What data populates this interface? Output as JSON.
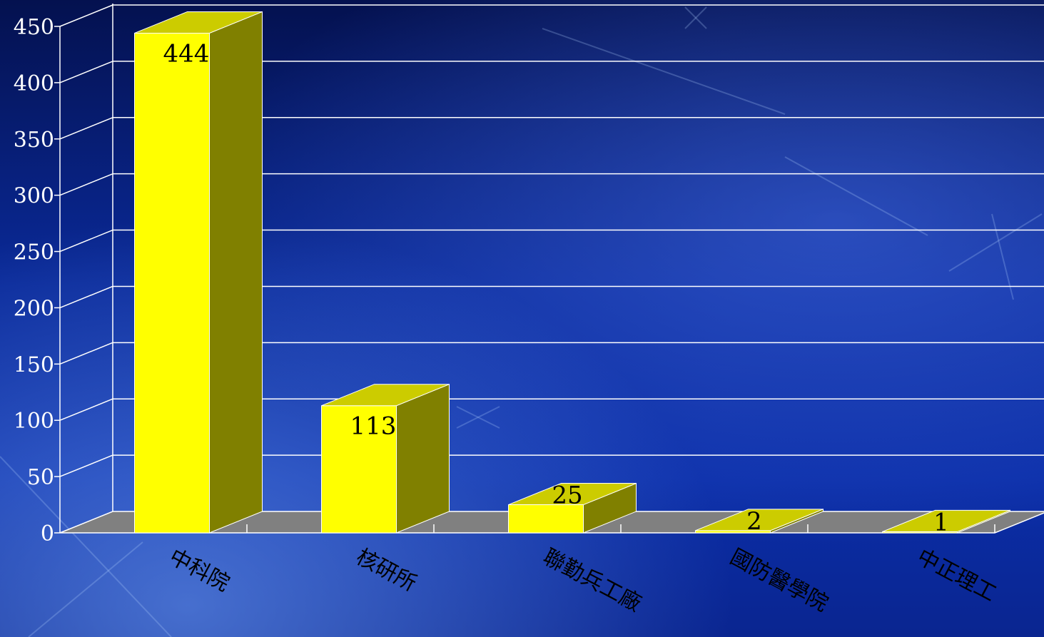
{
  "chart_data": {
    "type": "bar",
    "categories": [
      "中科院",
      "核研所",
      "聯勤兵工廠",
      "國防醫學院",
      "中正理工"
    ],
    "values": [
      444,
      113,
      25,
      2,
      1
    ],
    "data_labels": [
      "444",
      "113",
      "25",
      "2",
      "1"
    ],
    "y_ticks": [
      "0",
      "50",
      "100",
      "150",
      "200",
      "250",
      "300",
      "350",
      "400",
      "450"
    ],
    "ylim": [
      0,
      450
    ],
    "grid": true,
    "style": "3d",
    "colors": {
      "bar_front": "#ffff00",
      "bar_top": "#cccc00",
      "bar_side": "#808000",
      "floor": "#808080",
      "gridline": "#ffffff",
      "tick_text": "#ffffff",
      "label_text": "#000000"
    }
  }
}
